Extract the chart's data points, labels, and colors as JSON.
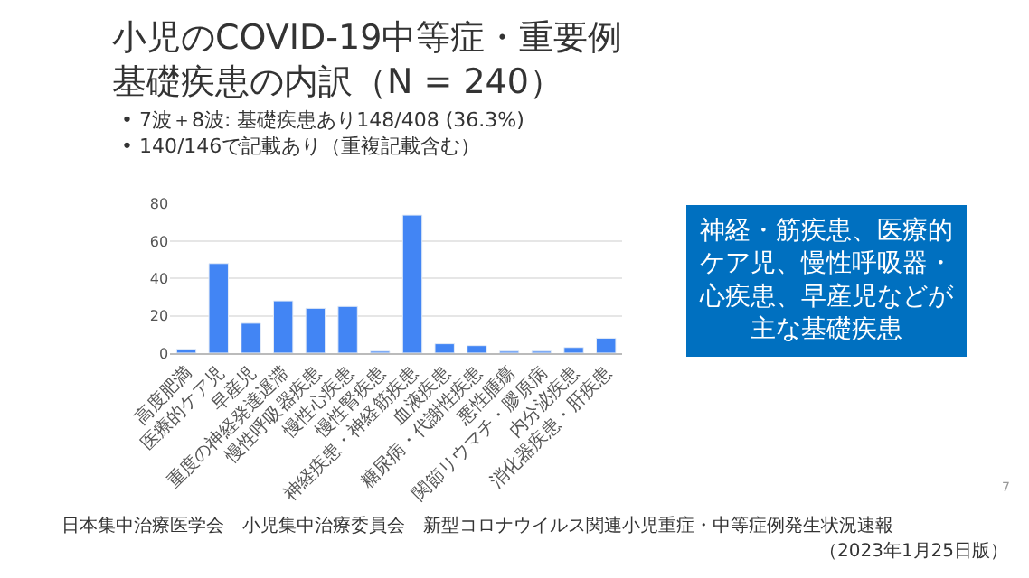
{
  "chart_data": {
    "type": "bar",
    "title": "小児のCOVID-19中等症・重要例基礎疾患の内訳（N = 240）",
    "subtitle": "• 7波＋8波: 基礎疾患あり148/408 (36.3%)\n• 140/146で記載あり（重複記載含む）",
    "categories": [
      "高度肥満",
      "医療的ケア児",
      "早産児",
      "重度の神経発達遅滞",
      "慢性呼吸器疾患",
      "慢性心疾患",
      "慢性腎疾患",
      "神経疾患・神経筋疾患",
      "血液疾患",
      "糖尿病・代謝性疾患",
      "悪性腫瘍",
      "関節リウマチ・膠原病",
      "内分泌疾患",
      "消化器疾患・肝疾患"
    ],
    "values": [
      2,
      48,
      16,
      28,
      24,
      25,
      1,
      74,
      5,
      4,
      1,
      1,
      3,
      8
    ],
    "color": "#4285f4",
    "ylim": [
      0,
      80
    ],
    "yticks": [
      0,
      20,
      40,
      60,
      80
    ],
    "grid": "y",
    "annotations": [
      "神経・筋疾患、医療的ケア児、慢性呼吸器・心疾患、早産児などが主な基礎疾患",
      "日本集中治療医学会　小児集中治療委員会　新型コロナウイルス関連小児重症・中等症例発生状況速報",
      "（2023年1月25日版）",
      "7"
    ]
  }
}
